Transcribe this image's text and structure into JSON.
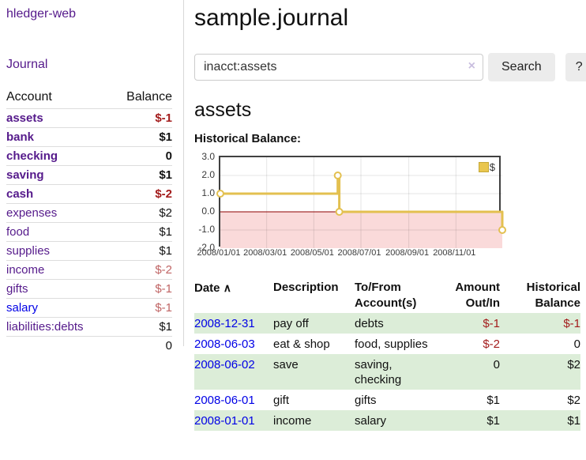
{
  "app": {
    "title": "hledger-web"
  },
  "sidebar": {
    "journal_link": "Journal",
    "accounts": {
      "headers": [
        "Account",
        "Balance"
      ],
      "rows": [
        {
          "account": "assets",
          "balance": "$-1",
          "depth": 1,
          "bold": true,
          "balance_class": "neg-strong",
          "link_color": "purple"
        },
        {
          "account": "bank",
          "balance": "$1",
          "depth": 2,
          "bold": true,
          "balance_class": "",
          "link_color": "purple"
        },
        {
          "account": "checking",
          "balance": "0",
          "depth": 3,
          "bold": true,
          "balance_class": "",
          "link_color": "purple"
        },
        {
          "account": "saving",
          "balance": "$1",
          "depth": 3,
          "bold": true,
          "balance_class": "",
          "link_color": "purple"
        },
        {
          "account": "cash",
          "balance": "$-2",
          "depth": 2,
          "bold": true,
          "balance_class": "neg-strong",
          "link_color": "purple"
        },
        {
          "account": "expenses",
          "balance": "$2",
          "depth": 1,
          "bold": false,
          "balance_class": "",
          "link_color": "purple"
        },
        {
          "account": "food",
          "balance": "$1",
          "depth": 2,
          "bold": false,
          "balance_class": "",
          "link_color": "purple"
        },
        {
          "account": "supplies",
          "balance": "$1",
          "depth": 2,
          "bold": false,
          "balance_class": "",
          "link_color": "purple"
        },
        {
          "account": "income",
          "balance": "$-2",
          "depth": 1,
          "bold": false,
          "balance_class": "neg-muted",
          "link_color": "purple"
        },
        {
          "account": "gifts",
          "balance": "$-1",
          "depth": 2,
          "bold": false,
          "balance_class": "neg-muted",
          "link_color": "purple"
        },
        {
          "account": "salary",
          "balance": "$-1",
          "depth": 2,
          "bold": false,
          "balance_class": "neg-muted",
          "link_color": "blue"
        },
        {
          "account": "liabilities:debts",
          "balance": "$1",
          "depth": 1,
          "bold": false,
          "balance_class": "",
          "link_color": "purple"
        }
      ],
      "total": "0"
    }
  },
  "main": {
    "title": "sample.journal",
    "search": {
      "value": "inacct:assets",
      "clear_icon": "×",
      "button_label": "Search",
      "help_label": "?"
    },
    "account_heading": "assets"
  },
  "chart_data": {
    "type": "line",
    "title": "Historical Balance:",
    "step": true,
    "xlim": [
      "2008-01-01",
      "2008-12-31"
    ],
    "ylim": [
      -2,
      3
    ],
    "y_ticks": [
      3.0,
      2.0,
      1.0,
      0.0,
      -1.0,
      -2.0
    ],
    "x_ticks": [
      "2008/01/01",
      "2008/03/01",
      "2008/05/01",
      "2008/07/01",
      "2008/09/01",
      "2008/11/01"
    ],
    "series": [
      {
        "name": "$",
        "color": "#e3c050",
        "points": [
          [
            "2008-01-01",
            1
          ],
          [
            "2008-06-01",
            2
          ],
          [
            "2008-06-03",
            0
          ],
          [
            "2008-12-31",
            -1
          ]
        ]
      }
    ],
    "legend": {
      "label": "$",
      "position": "top-right"
    },
    "colors": {
      "negative_fill": "#fadada",
      "zero_line": "#8e0000",
      "grid": "rgba(0,0,0,0.10)",
      "frame": "#404040",
      "marker_fill": "#ffffff"
    }
  },
  "register": {
    "headers": [
      {
        "label": "Date",
        "sort_icon": "∧"
      },
      {
        "label": "Description"
      },
      {
        "label": "To/From Account(s)"
      },
      {
        "label": "Amount Out/In"
      },
      {
        "label": "Historical Balance"
      }
    ],
    "rows": [
      {
        "date": "2008-12-31",
        "description": "pay off",
        "accounts": "debts",
        "amount": "$-1",
        "amount_class": "neg",
        "balance": "$-1",
        "balance_class": "neg"
      },
      {
        "date": "2008-06-03",
        "description": "eat & shop",
        "accounts": "food, supplies",
        "amount": "$-2",
        "amount_class": "neg",
        "balance": "0",
        "balance_class": ""
      },
      {
        "date": "2008-06-02",
        "description": "save",
        "accounts": "saving, checking",
        "amount": "0",
        "amount_class": "",
        "balance": "$2",
        "balance_class": ""
      },
      {
        "date": "2008-06-01",
        "description": "gift",
        "accounts": "gifts",
        "amount": "$1",
        "amount_class": "",
        "balance": "$2",
        "balance_class": ""
      },
      {
        "date": "2008-01-01",
        "description": "income",
        "accounts": "salary",
        "amount": "$1",
        "amount_class": "",
        "balance": "$1",
        "balance_class": ""
      }
    ]
  }
}
